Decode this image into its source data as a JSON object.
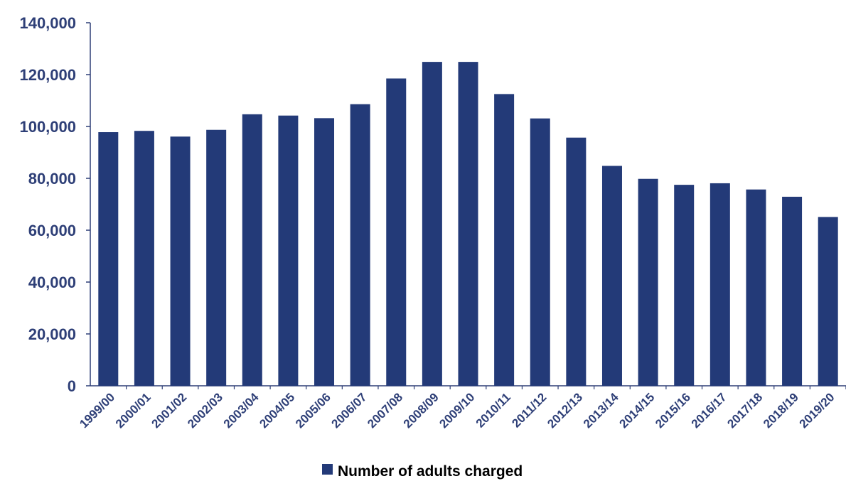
{
  "chart_data": {
    "type": "bar",
    "categories": [
      "1999/00",
      "2000/01",
      "2001/02",
      "2002/03",
      "2003/04",
      "2004/05",
      "2005/06",
      "2006/07",
      "2007/08",
      "2008/09",
      "2009/10",
      "2010/11",
      "2011/12",
      "2012/13",
      "2013/14",
      "2014/15",
      "2015/16",
      "2016/17",
      "2017/18",
      "2018/19",
      "2019/20"
    ],
    "series": [
      {
        "name": "Number of adults charged",
        "values": [
          97800,
          98300,
          96100,
          98700,
          104700,
          104200,
          103200,
          108600,
          118500,
          124900,
          124900,
          112500,
          103100,
          95700,
          84800,
          79800,
          77500,
          78100,
          75700,
          72900,
          65100
        ]
      }
    ],
    "y_ticks": [
      "0",
      "20,000",
      "40,000",
      "60,000",
      "80,000",
      "100,000",
      "120,000",
      "140,000"
    ],
    "ylim": [
      0,
      140000
    ],
    "grid": false,
    "legend_position": "bottom",
    "colors": {
      "bar": "#233a78",
      "axis_text": "#2e3f77",
      "axis_line": "#2e3f77"
    }
  }
}
